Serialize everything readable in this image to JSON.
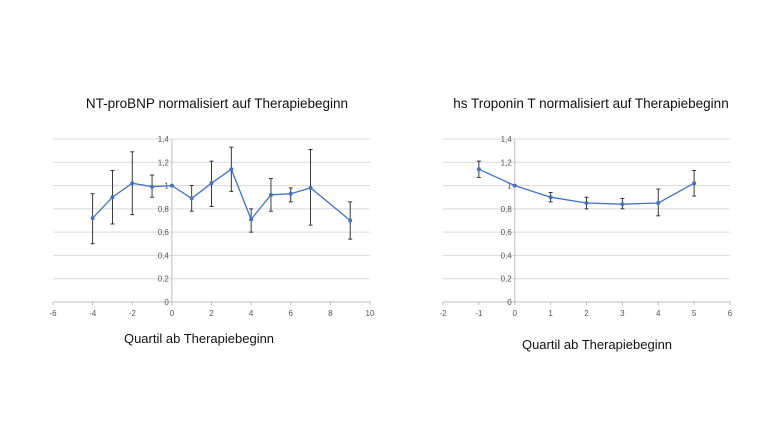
{
  "chart_data": [
    {
      "type": "scatter",
      "title": "NT-proBNP normalisiert auf Therapiebeginn",
      "xlabel": "Quartil ab Therapiebeginn",
      "ylabel": "",
      "xlim": [
        -6,
        10
      ],
      "ylim": [
        0,
        1.4
      ],
      "xticks": [
        -6,
        -4,
        -2,
        0,
        2,
        4,
        6,
        8,
        10
      ],
      "yticks": [
        0,
        0.2,
        0.4,
        0.6,
        0.8,
        1,
        1.2,
        1.4
      ],
      "xtick_labels": [
        "-6",
        "-4",
        "-2",
        "0",
        "2",
        "4",
        "6",
        "8",
        "10"
      ],
      "ytick_labels": [
        "0",
        "0,2",
        "0,4",
        "0,6",
        "0,8",
        "1",
        "1,2",
        "1,4"
      ],
      "grid": true,
      "legend": "none",
      "color": "#4472c4",
      "x": [
        -4,
        -3,
        -2,
        -1,
        0,
        1,
        2,
        3,
        4,
        5,
        6,
        7,
        9
      ],
      "y": [
        0.72,
        0.9,
        1.02,
        0.99,
        1.0,
        0.89,
        1.02,
        1.14,
        0.71,
        0.92,
        0.93,
        0.98,
        0.7
      ],
      "err_low": [
        0.5,
        0.67,
        0.75,
        0.9,
        1.0,
        0.78,
        0.82,
        0.95,
        0.6,
        0.78,
        0.86,
        0.66,
        0.54
      ],
      "err_high": [
        0.93,
        1.13,
        1.29,
        1.09,
        1.0,
        1.0,
        1.21,
        1.33,
        0.8,
        1.06,
        0.98,
        1.31,
        0.86
      ]
    },
    {
      "type": "scatter",
      "title": "hs Troponin T normalisiert auf Therapiebeginn",
      "xlabel": "Quartil ab Therapiebeginn",
      "ylabel": "",
      "xlim": [
        -2,
        6
      ],
      "ylim": [
        0,
        1.4
      ],
      "xticks": [
        -2,
        -1,
        0,
        1,
        2,
        3,
        4,
        5,
        6
      ],
      "yticks": [
        0,
        0.2,
        0.4,
        0.6,
        0.8,
        1,
        1.2,
        1.4
      ],
      "xtick_labels": [
        "-2",
        "-1",
        "0",
        "1",
        "2",
        "3",
        "4",
        "5",
        "6"
      ],
      "ytick_labels": [
        "0",
        "0,2",
        "0,4",
        "0,6",
        "0,8",
        "1",
        "1,2",
        "1,4"
      ],
      "grid": true,
      "legend": "none",
      "color": "#4472c4",
      "x": [
        -1,
        0,
        1,
        2,
        3,
        4,
        5
      ],
      "y": [
        1.14,
        1.0,
        0.9,
        0.85,
        0.84,
        0.85,
        1.02
      ],
      "err_low": [
        1.07,
        1.0,
        0.86,
        0.8,
        0.8,
        0.74,
        0.91
      ],
      "err_high": [
        1.21,
        1.0,
        0.94,
        0.9,
        0.89,
        0.97,
        1.13
      ]
    }
  ]
}
